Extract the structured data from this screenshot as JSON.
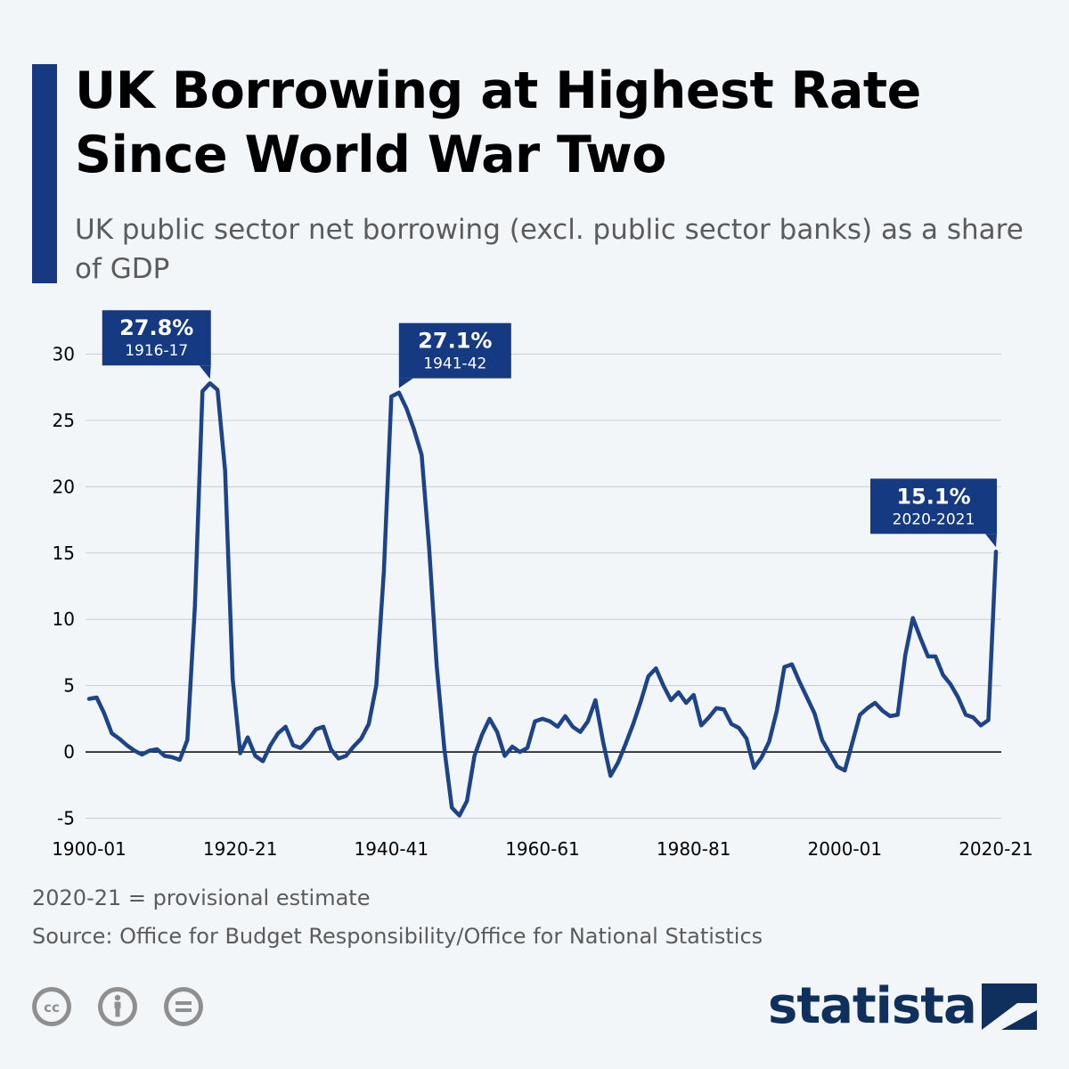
{
  "header": {
    "title": "UK Borrowing at Highest Rate Since World War Two",
    "subtitle": "UK public sector net borrowing (excl. public sector banks) as a share of GDP"
  },
  "colors": {
    "accent": "#153a82",
    "line": "#1d4389",
    "grid": "#c9cdd2",
    "zero_line": "#000000",
    "text_muted": "#5b5b5b",
    "logo": "#0f2f5c",
    "license_icons": "#8f8f8f"
  },
  "chart_data": {
    "type": "line",
    "title": "",
    "xlabel": "",
    "ylabel": "",
    "ylim": [
      -5,
      30
    ],
    "y_ticks": [
      30,
      25,
      20,
      15,
      10,
      5,
      0,
      -5
    ],
    "y_tick_labels": [
      "30",
      "25",
      "20",
      "15",
      "10",
      "5",
      "0",
      "-5"
    ],
    "x_tick_labels": [
      "1900-01",
      "1920-21",
      "1940-41",
      "1960-61",
      "1980-81",
      "2000-01",
      "2020-21"
    ],
    "x_tick_years": [
      1900,
      1920,
      1940,
      1960,
      1980,
      2000,
      2020
    ],
    "grid": "horizontal",
    "series": [
      {
        "x": [
          1900,
          1901,
          1902,
          1903,
          1904,
          1905,
          1906,
          1907,
          1908,
          1909,
          1910,
          1911,
          1912,
          1913,
          1914,
          1915,
          1916,
          1917,
          1918,
          1919,
          1920,
          1921,
          1922,
          1923,
          1924,
          1925,
          1926,
          1927,
          1928,
          1929,
          1930,
          1931,
          1932,
          1933,
          1934,
          1935,
          1936,
          1937,
          1938,
          1939,
          1940,
          1941,
          1942,
          1943,
          1944,
          1945,
          1946,
          1947,
          1948,
          1949,
          1950,
          1951,
          1952,
          1953,
          1954,
          1955,
          1956,
          1957,
          1958,
          1959,
          1960,
          1961,
          1962,
          1963,
          1964,
          1965,
          1966,
          1967,
          1968,
          1969,
          1970,
          1971,
          1972,
          1973,
          1974,
          1975,
          1976,
          1977,
          1978,
          1979,
          1980,
          1981,
          1982,
          1983,
          1984,
          1985,
          1986,
          1987,
          1988,
          1989,
          1990,
          1991,
          1992,
          1993,
          1994,
          1995,
          1996,
          1997,
          1998,
          1999,
          2000,
          2001,
          2002,
          2003,
          2004,
          2005,
          2006,
          2007,
          2008,
          2009,
          2010,
          2011,
          2012,
          2013,
          2014,
          2015,
          2016,
          2017,
          2018,
          2019,
          2020
        ],
        "values": [
          4.0,
          4.1,
          2.9,
          1.4,
          1.0,
          0.5,
          0.1,
          -0.2,
          0.1,
          0.2,
          -0.3,
          -0.4,
          -0.6,
          0.9,
          11.0,
          27.2,
          27.8,
          27.3,
          21.2,
          5.5,
          -0.1,
          1.1,
          -0.3,
          -0.7,
          0.5,
          1.4,
          1.9,
          0.5,
          0.3,
          0.9,
          1.7,
          1.9,
          0.2,
          -0.5,
          -0.3,
          0.4,
          1.0,
          2.1,
          5.0,
          13.6,
          26.8,
          27.1,
          25.9,
          24.3,
          22.4,
          15.3,
          6.5,
          0.3,
          -4.2,
          -4.8,
          -3.7,
          -0.3,
          1.3,
          2.5,
          1.5,
          -0.3,
          0.4,
          0.0,
          0.3,
          2.3,
          2.5,
          2.3,
          1.9,
          2.7,
          1.9,
          1.5,
          2.3,
          3.9,
          0.8,
          -1.8,
          -0.8,
          0.6,
          2.1,
          3.8,
          5.7,
          6.3,
          5.0,
          3.9,
          4.5,
          3.7,
          4.3,
          2.0,
          2.6,
          3.3,
          3.2,
          2.1,
          1.8,
          1.0,
          -1.2,
          -0.4,
          0.8,
          3.1,
          6.4,
          6.6,
          5.3,
          4.1,
          2.9,
          0.9,
          -0.1,
          -1.1,
          -1.4,
          0.7,
          2.8,
          3.3,
          3.7,
          3.1,
          2.7,
          2.8,
          7.3,
          10.1,
          8.6,
          7.2,
          7.2,
          5.8,
          5.1,
          4.1,
          2.8,
          2.6,
          2.0,
          2.4,
          15.1
        ]
      }
    ],
    "annotations": [
      {
        "value_label": "27.8%",
        "period_label": "1916-17",
        "x": 1916,
        "y": 27.8
      },
      {
        "value_label": "27.1%",
        "period_label": "1941-42",
        "x": 1941,
        "y": 27.1
      },
      {
        "value_label": "15.1%",
        "period_label": "2020-2021",
        "x": 2020,
        "y": 15.1
      }
    ]
  },
  "footer": {
    "note": "2020-21 = provisional estimate",
    "source": "Source: Office for Budget Responsibility/Office for National Statistics",
    "license_icons": [
      "cc-icon",
      "attribution-icon",
      "no-derivatives-icon"
    ],
    "brand": "statista"
  }
}
